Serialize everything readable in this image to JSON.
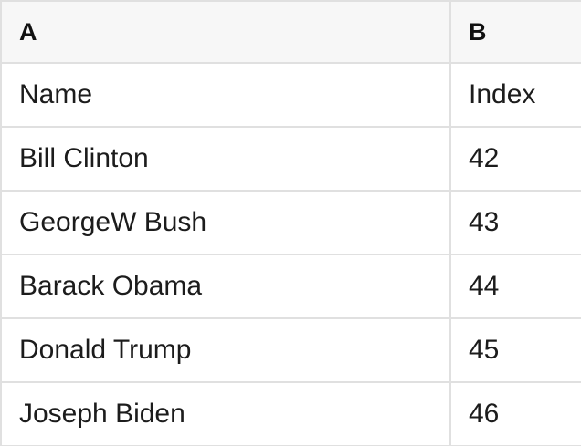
{
  "table": {
    "columns": [
      {
        "key": "A",
        "label": "A"
      },
      {
        "key": "B",
        "label": "B"
      }
    ],
    "rows": [
      [
        "Name",
        "Index"
      ],
      [
        "Bill Clinton",
        "42"
      ],
      [
        "GeorgeW Bush",
        "43"
      ],
      [
        "Barack Obama",
        "44"
      ],
      [
        "Donald Trump",
        "45"
      ],
      [
        "Joseph Biden",
        "46"
      ]
    ],
    "colors": {
      "header_bg": "#f7f7f7",
      "grid_border": "#e0e0e0",
      "cell_text": "#1c1c1c",
      "header_text": "#111111",
      "row_bg": "#ffffff"
    }
  }
}
